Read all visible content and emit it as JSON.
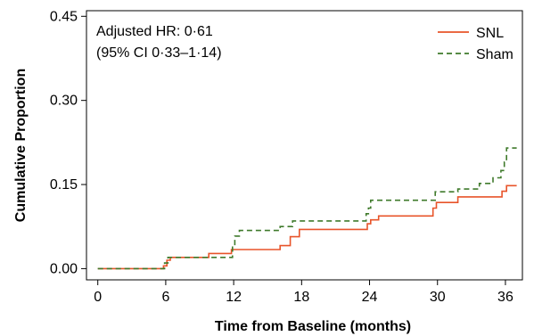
{
  "chart_data": {
    "type": "line",
    "step": true,
    "xlabel": "Time from Baseline (months)",
    "ylabel": "Cumulative Proportion",
    "xlim": [
      -1,
      37.5
    ],
    "ylim": [
      -0.02,
      0.46
    ],
    "xticks": [
      0,
      6,
      12,
      18,
      24,
      30,
      36
    ],
    "xtick_labels": [
      "0",
      "6",
      "12",
      "18",
      "24",
      "30",
      "36"
    ],
    "yticks": [
      0.0,
      0.15,
      0.3,
      0.45
    ],
    "ytick_labels": [
      "0.00",
      "0.15",
      "0.30",
      "0.45"
    ],
    "grid": false,
    "legend_position": "top-right",
    "annotations": [
      "Adjusted HR: 0·61",
      "(95% CI 0·33–1·14)"
    ],
    "series": [
      {
        "name": "SNL",
        "color": "#e8542a",
        "dash": "solid",
        "x": [
          0,
          5.8,
          6.1,
          6.4,
          9.8,
          11.8,
          16.1,
          17.0,
          17.8,
          23.8,
          24.1,
          24.8,
          29.6,
          29.9,
          31.8,
          35.7,
          36.1,
          37.0
        ],
        "y": [
          0,
          0.005,
          0.015,
          0.02,
          0.027,
          0.034,
          0.041,
          0.057,
          0.07,
          0.08,
          0.087,
          0.094,
          0.108,
          0.118,
          0.128,
          0.138,
          0.148,
          0.148
        ]
      },
      {
        "name": "Sham",
        "color": "#3f7a2b",
        "dash": "dashed",
        "x": [
          0,
          5.9,
          6.2,
          11.9,
          12.1,
          12.5,
          16.1,
          17.2,
          23.7,
          23.9,
          24.1,
          29.8,
          31.8,
          33.7,
          34.9,
          35.6,
          35.9,
          36.1,
          37.0
        ],
        "y": [
          0,
          0.01,
          0.02,
          0.04,
          0.058,
          0.068,
          0.075,
          0.085,
          0.098,
          0.108,
          0.122,
          0.137,
          0.142,
          0.152,
          0.162,
          0.175,
          0.19,
          0.215,
          0.215
        ]
      }
    ]
  }
}
